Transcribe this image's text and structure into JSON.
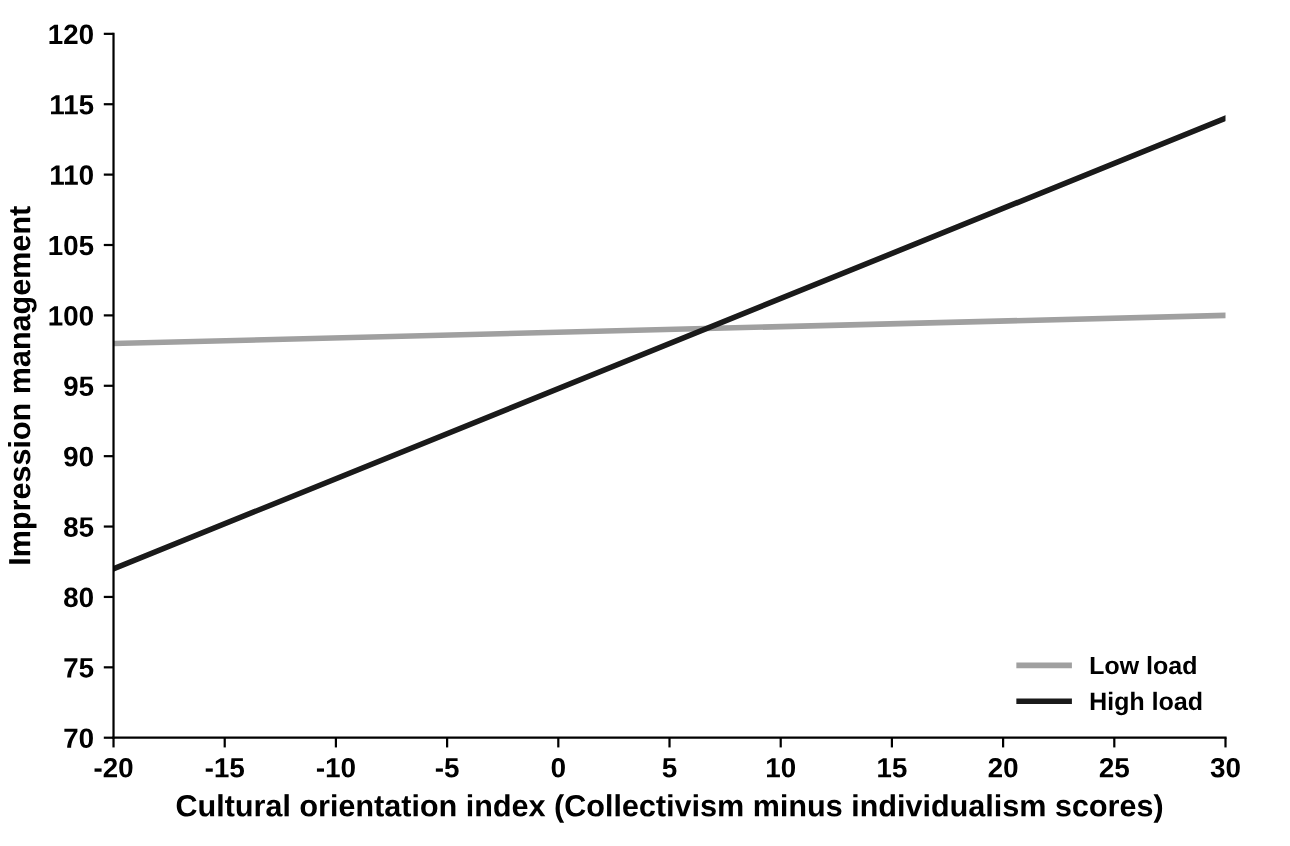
{
  "chart_data": {
    "type": "line",
    "xlabel": "Cultural orientation index (Collectivism minus individualism scores)",
    "ylabel": "Impression management",
    "x": [
      -20,
      30
    ],
    "series": [
      {
        "name": "Low load",
        "color": "#a0a0a0",
        "values": [
          98,
          100
        ]
      },
      {
        "name": "High load",
        "color": "#1a1a1a",
        "values": [
          82,
          114
        ]
      }
    ],
    "xlim": [
      -20,
      30
    ],
    "xticks": [
      -20,
      -15,
      -10,
      -5,
      0,
      5,
      10,
      15,
      20,
      25,
      30
    ],
    "ylim": [
      70,
      120
    ],
    "yticks": [
      70,
      75,
      80,
      85,
      90,
      95,
      100,
      105,
      110,
      115,
      120
    ],
    "grid": false,
    "legend": "bottom right",
    "marker": "none",
    "line_style": "solid"
  }
}
